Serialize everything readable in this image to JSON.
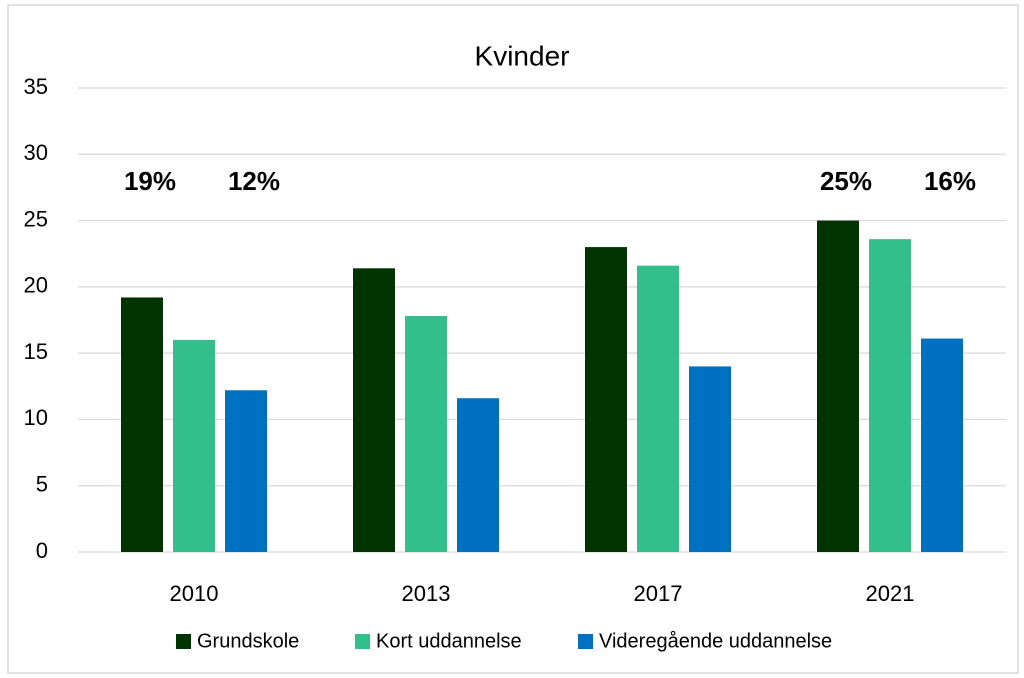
{
  "chart_data": {
    "type": "bar",
    "title": "Kvinder",
    "categories": [
      "2010",
      "2013",
      "2017",
      "2021"
    ],
    "series": [
      {
        "name": "Grundskole",
        "color": "#003300",
        "values": [
          19.2,
          21.4,
          23.0,
          25.0
        ],
        "value_labels": [
          "19%",
          null,
          null,
          "25%"
        ]
      },
      {
        "name": "Kort uddannelse",
        "color": "#33bf8c",
        "values": [
          16.0,
          17.8,
          21.6,
          23.6
        ]
      },
      {
        "name": "Videregående uddannelse",
        "color": "#0070c0",
        "values": [
          12.2,
          11.6,
          14.0,
          16.1
        ],
        "value_labels": [
          "12%",
          null,
          null,
          "16%"
        ]
      }
    ],
    "ylim": [
      0,
      35
    ],
    "yticks": [
      0,
      5,
      10,
      15,
      20,
      25,
      30,
      35
    ],
    "grid": true,
    "legend": "bottom"
  }
}
